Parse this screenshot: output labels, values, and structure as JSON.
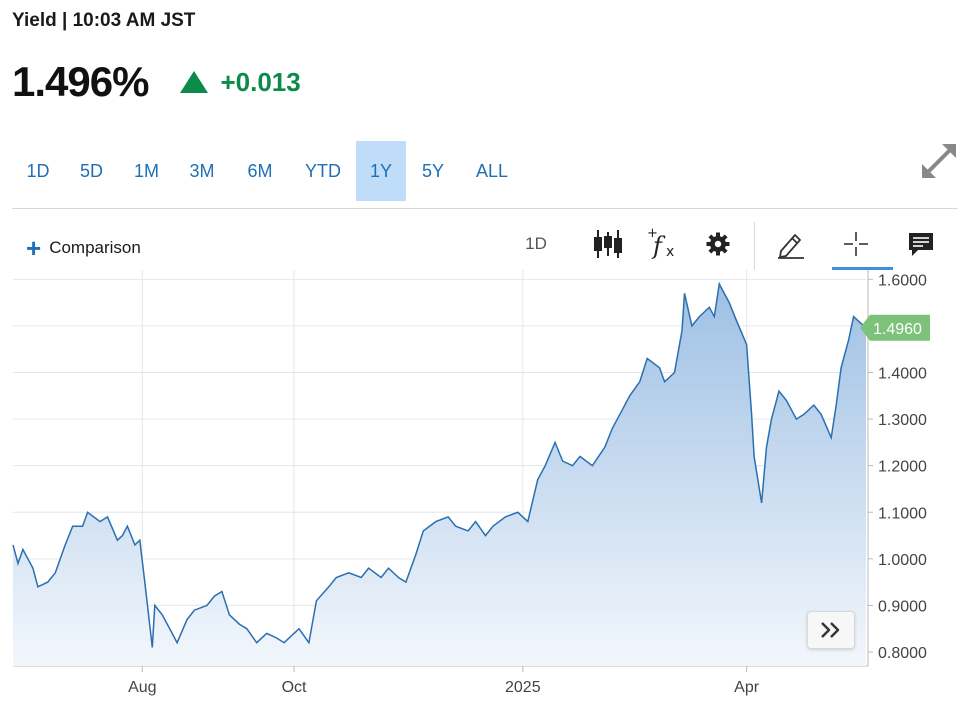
{
  "header": {
    "title": "Yield | 10:03 AM JST"
  },
  "quote": {
    "value": "1.496%",
    "change": "+0.013",
    "change_direction": "up",
    "up_color": "#0c8a4a"
  },
  "ranges": [
    {
      "label": "1D",
      "active": false
    },
    {
      "label": "5D",
      "active": false
    },
    {
      "label": "1M",
      "active": false
    },
    {
      "label": "3M",
      "active": false
    },
    {
      "label": "6M",
      "active": false
    },
    {
      "label": "YTD",
      "active": false
    },
    {
      "label": "1Y",
      "active": true
    },
    {
      "label": "5Y",
      "active": false
    },
    {
      "label": "ALL",
      "active": false
    }
  ],
  "toolbar": {
    "comparison_label": "Comparison",
    "interval_label": "1D",
    "icons": [
      "candlestick-icon",
      "fx-indicator-icon",
      "gear-icon",
      "pencil-icon",
      "crosshair-icon",
      "comment-icon"
    ]
  },
  "chart_data": {
    "type": "area",
    "line_color": "#2a6fb0",
    "last_value_label": "1.4960",
    "last_value_color": "#7cc27a",
    "ylim": [
      0.77,
      1.62
    ],
    "y_ticks": [
      0.8,
      0.9,
      1.0,
      1.1,
      1.2,
      1.3,
      1.4,
      1.5,
      1.6
    ],
    "y_tick_labels": [
      "0.8000",
      "0.9000",
      "1.0000",
      "1.1000",
      "1.2000",
      "1.3000",
      "1.4000",
      "1.5000",
      "1.6000"
    ],
    "x_range": [
      "2024-06-10",
      "2025-05-19"
    ],
    "x_ticks": [
      {
        "label": "Aug",
        "date": "2024-08-01"
      },
      {
        "label": "Oct",
        "date": "2024-10-01"
      },
      {
        "label": "2025",
        "date": "2025-01-01"
      },
      {
        "label": "Apr",
        "date": "2025-04-01"
      }
    ],
    "series": [
      {
        "points": [
          [
            "2024-06-10",
            1.03
          ],
          [
            "2024-06-12",
            0.99
          ],
          [
            "2024-06-14",
            1.02
          ],
          [
            "2024-06-18",
            0.98
          ],
          [
            "2024-06-20",
            0.94
          ],
          [
            "2024-06-24",
            0.95
          ],
          [
            "2024-06-27",
            0.97
          ],
          [
            "2024-07-01",
            1.03
          ],
          [
            "2024-07-04",
            1.07
          ],
          [
            "2024-07-08",
            1.07
          ],
          [
            "2024-07-10",
            1.1
          ],
          [
            "2024-07-15",
            1.08
          ],
          [
            "2024-07-18",
            1.09
          ],
          [
            "2024-07-22",
            1.04
          ],
          [
            "2024-07-24",
            1.05
          ],
          [
            "2024-07-26",
            1.07
          ],
          [
            "2024-07-29",
            1.03
          ],
          [
            "2024-07-31",
            1.04
          ],
          [
            "2024-08-02",
            0.95
          ],
          [
            "2024-08-05",
            0.81
          ],
          [
            "2024-08-06",
            0.9
          ],
          [
            "2024-08-09",
            0.88
          ],
          [
            "2024-08-13",
            0.84
          ],
          [
            "2024-08-15",
            0.82
          ],
          [
            "2024-08-19",
            0.87
          ],
          [
            "2024-08-22",
            0.89
          ],
          [
            "2024-08-27",
            0.9
          ],
          [
            "2024-08-30",
            0.92
          ],
          [
            "2024-09-02",
            0.93
          ],
          [
            "2024-09-05",
            0.88
          ],
          [
            "2024-09-09",
            0.86
          ],
          [
            "2024-09-12",
            0.85
          ],
          [
            "2024-09-16",
            0.82
          ],
          [
            "2024-09-20",
            0.84
          ],
          [
            "2024-09-24",
            0.83
          ],
          [
            "2024-09-27",
            0.82
          ],
          [
            "2024-10-01",
            0.84
          ],
          [
            "2024-10-03",
            0.85
          ],
          [
            "2024-10-07",
            0.82
          ],
          [
            "2024-10-10",
            0.91
          ],
          [
            "2024-10-15",
            0.94
          ],
          [
            "2024-10-18",
            0.96
          ],
          [
            "2024-10-23",
            0.97
          ],
          [
            "2024-10-28",
            0.96
          ],
          [
            "2024-10-31",
            0.98
          ],
          [
            "2024-11-05",
            0.96
          ],
          [
            "2024-11-08",
            0.98
          ],
          [
            "2024-11-12",
            0.96
          ],
          [
            "2024-11-15",
            0.95
          ],
          [
            "2024-11-19",
            1.01
          ],
          [
            "2024-11-22",
            1.06
          ],
          [
            "2024-11-27",
            1.08
          ],
          [
            "2024-12-02",
            1.09
          ],
          [
            "2024-12-05",
            1.07
          ],
          [
            "2024-12-10",
            1.06
          ],
          [
            "2024-12-13",
            1.08
          ],
          [
            "2024-12-17",
            1.05
          ],
          [
            "2024-12-20",
            1.07
          ],
          [
            "2024-12-25",
            1.09
          ],
          [
            "2024-12-30",
            1.1
          ],
          [
            "2025-01-03",
            1.08
          ],
          [
            "2025-01-07",
            1.17
          ],
          [
            "2025-01-10",
            1.2
          ],
          [
            "2025-01-14",
            1.25
          ],
          [
            "2025-01-17",
            1.21
          ],
          [
            "2025-01-21",
            1.2
          ],
          [
            "2025-01-24",
            1.22
          ],
          [
            "2025-01-29",
            1.2
          ],
          [
            "2025-02-03",
            1.24
          ],
          [
            "2025-02-06",
            1.28
          ],
          [
            "2025-02-10",
            1.32
          ],
          [
            "2025-02-13",
            1.35
          ],
          [
            "2025-02-17",
            1.38
          ],
          [
            "2025-02-20",
            1.43
          ],
          [
            "2025-02-25",
            1.41
          ],
          [
            "2025-02-27",
            1.38
          ],
          [
            "2025-03-03",
            1.4
          ],
          [
            "2025-03-06",
            1.49
          ],
          [
            "2025-03-07",
            1.57
          ],
          [
            "2025-03-10",
            1.5
          ],
          [
            "2025-03-13",
            1.52
          ],
          [
            "2025-03-17",
            1.54
          ],
          [
            "2025-03-19",
            1.52
          ],
          [
            "2025-03-21",
            1.59
          ],
          [
            "2025-03-25",
            1.55
          ],
          [
            "2025-03-28",
            1.51
          ],
          [
            "2025-04-01",
            1.46
          ],
          [
            "2025-04-03",
            1.31
          ],
          [
            "2025-04-04",
            1.22
          ],
          [
            "2025-04-07",
            1.12
          ],
          [
            "2025-04-09",
            1.24
          ],
          [
            "2025-04-11",
            1.3
          ],
          [
            "2025-04-14",
            1.36
          ],
          [
            "2025-04-17",
            1.34
          ],
          [
            "2025-04-21",
            1.3
          ],
          [
            "2025-04-24",
            1.31
          ],
          [
            "2025-04-28",
            1.33
          ],
          [
            "2025-05-01",
            1.31
          ],
          [
            "2025-05-05",
            1.26
          ],
          [
            "2025-05-07",
            1.33
          ],
          [
            "2025-05-09",
            1.41
          ],
          [
            "2025-05-12",
            1.47
          ],
          [
            "2025-05-14",
            1.52
          ],
          [
            "2025-05-16",
            1.51
          ],
          [
            "2025-05-19",
            1.496
          ]
        ]
      }
    ]
  }
}
